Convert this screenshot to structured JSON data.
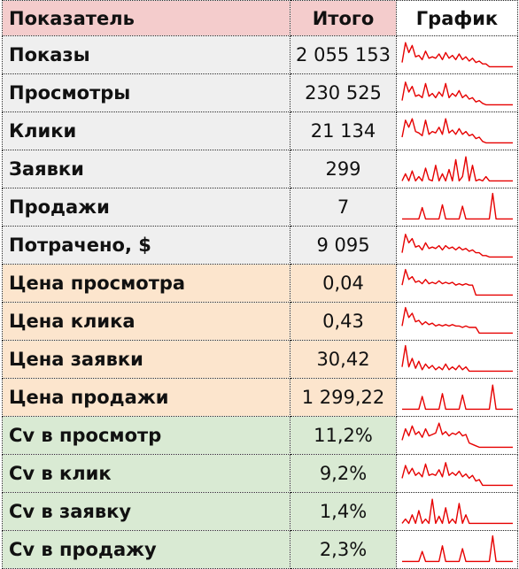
{
  "header": {
    "col_name": "Показатель",
    "col_total": "Итого",
    "col_chart": "График"
  },
  "line_color": "#e60000",
  "groups": {
    "base": "#efefef",
    "cost": "#fce5cd",
    "cv": "#d9ead3",
    "header": "#f4cccc"
  },
  "rows": [
    {
      "name": "Показы",
      "total": "2 055 153",
      "group": "base",
      "spark": [
        0.2,
        0.9,
        0.55,
        0.8,
        0.4,
        0.45,
        0.3,
        0.6,
        0.35,
        0.4,
        0.35,
        0.5,
        0.3,
        0.55,
        0.35,
        0.45,
        0.3,
        0.5,
        0.3,
        0.4,
        0.25,
        0.35,
        0.2,
        0.25,
        0.15,
        0.15,
        0.05,
        0.05,
        0.05,
        0.05,
        0.05,
        0.05,
        0.05,
        0.05
      ]
    },
    {
      "name": "Просмотры",
      "total": "230 525",
      "group": "base",
      "spark": [
        0.2,
        0.85,
        0.5,
        0.7,
        0.35,
        0.4,
        0.3,
        0.8,
        0.35,
        0.45,
        0.3,
        0.5,
        0.35,
        0.8,
        0.3,
        0.45,
        0.35,
        0.55,
        0.3,
        0.4,
        0.25,
        0.3,
        0.15,
        0.2,
        0.1,
        0.05,
        0.05,
        0.05,
        0.05,
        0.05,
        0.05,
        0.05,
        0.05,
        0.05
      ]
    },
    {
      "name": "Клики",
      "total": "21 134",
      "group": "base",
      "spark": [
        0.25,
        0.85,
        0.6,
        0.9,
        0.45,
        0.4,
        0.3,
        0.85,
        0.35,
        0.45,
        0.4,
        0.6,
        0.35,
        0.9,
        0.4,
        0.5,
        0.35,
        0.55,
        0.35,
        0.45,
        0.3,
        0.35,
        0.2,
        0.25,
        0.1,
        0.05,
        0.05,
        0.05,
        0.05,
        0.05,
        0.05,
        0.05,
        0.05,
        0.05
      ]
    },
    {
      "name": "Заявки",
      "total": "299",
      "group": "base",
      "spark": [
        0.05,
        0.3,
        0.05,
        0.4,
        0.05,
        0.2,
        0.05,
        0.5,
        0.1,
        0.05,
        0.6,
        0.05,
        0.3,
        0.05,
        0.45,
        0.05,
        0.8,
        0.05,
        0.2,
        0.9,
        0.05,
        0.6,
        0.05,
        0.1,
        0.05,
        0.2,
        0.05,
        0.05,
        0.05,
        0.05,
        0.05,
        0.05,
        0.05,
        0.05
      ]
    },
    {
      "name": "Продажи",
      "total": "7",
      "group": "base",
      "spark": [
        0.05,
        0.05,
        0.05,
        0.05,
        0.05,
        0.05,
        0.45,
        0.05,
        0.05,
        0.05,
        0.05,
        0.05,
        0.55,
        0.05,
        0.05,
        0.05,
        0.05,
        0.05,
        0.5,
        0.05,
        0.05,
        0.05,
        0.05,
        0.05,
        0.05,
        0.05,
        0.05,
        0.95,
        0.05,
        0.05,
        0.05,
        0.05,
        0.05,
        0.05
      ]
    },
    {
      "name": "Потрачено, $",
      "total": "9 095",
      "group": "base",
      "spark": [
        0.2,
        0.85,
        0.55,
        0.7,
        0.4,
        0.45,
        0.3,
        0.55,
        0.35,
        0.4,
        0.35,
        0.45,
        0.3,
        0.45,
        0.35,
        0.4,
        0.3,
        0.4,
        0.3,
        0.35,
        0.25,
        0.3,
        0.2,
        0.2,
        0.1,
        0.1,
        0.05,
        0.05,
        0.05,
        0.05,
        0.05,
        0.05,
        0.05,
        0.05
      ]
    },
    {
      "name": "Цена просмотра",
      "total": "0,04",
      "group": "cost",
      "spark": [
        0.4,
        0.95,
        0.6,
        0.7,
        0.5,
        0.55,
        0.45,
        0.6,
        0.45,
        0.5,
        0.45,
        0.55,
        0.45,
        0.5,
        0.45,
        0.5,
        0.4,
        0.45,
        0.4,
        0.45,
        0.4,
        0.4,
        0.05,
        0.05,
        0.05,
        0.05,
        0.05,
        0.05,
        0.05,
        0.05,
        0.05,
        0.05,
        0.05,
        0.05
      ]
    },
    {
      "name": "Цена клика",
      "total": "0,43",
      "group": "cost",
      "spark": [
        0.3,
        0.95,
        0.6,
        0.75,
        0.45,
        0.5,
        0.35,
        0.45,
        0.35,
        0.4,
        0.3,
        0.35,
        0.3,
        0.35,
        0.3,
        0.35,
        0.3,
        0.3,
        0.25,
        0.3,
        0.25,
        0.25,
        0.25,
        0.05,
        0.05,
        0.05,
        0.05,
        0.05,
        0.05,
        0.05,
        0.05,
        0.05,
        0.05,
        0.05
      ]
    },
    {
      "name": "Цена заявки",
      "total": "30,42",
      "group": "cost",
      "spark": [
        0.2,
        0.95,
        0.2,
        0.5,
        0.15,
        0.4,
        0.1,
        0.3,
        0.15,
        0.25,
        0.1,
        0.2,
        0.1,
        0.3,
        0.1,
        0.2,
        0.1,
        0.25,
        0.1,
        0.2,
        0.05,
        0.05,
        0.05,
        0.05,
        0.05,
        0.05,
        0.05,
        0.05,
        0.05,
        0.05,
        0.05,
        0.05,
        0.05,
        0.05
      ]
    },
    {
      "name": "Цена продажи",
      "total": "1 299,22",
      "group": "cost",
      "spark": [
        0.05,
        0.05,
        0.05,
        0.05,
        0.05,
        0.05,
        0.5,
        0.05,
        0.05,
        0.05,
        0.05,
        0.05,
        0.6,
        0.05,
        0.05,
        0.05,
        0.05,
        0.05,
        0.55,
        0.05,
        0.05,
        0.05,
        0.05,
        0.05,
        0.05,
        0.05,
        0.05,
        0.9,
        0.05,
        0.05,
        0.05,
        0.05,
        0.05,
        0.05
      ]
    },
    {
      "name": "Cv в просмотр",
      "total": "11,2%",
      "group": "cv",
      "spark": [
        0.3,
        0.7,
        0.45,
        0.8,
        0.5,
        0.6,
        0.4,
        0.7,
        0.45,
        0.5,
        0.55,
        0.9,
        0.5,
        0.6,
        0.45,
        0.55,
        0.5,
        0.6,
        0.45,
        0.5,
        0.2,
        0.15,
        0.1,
        0.05,
        0.05,
        0.05,
        0.05,
        0.05,
        0.05,
        0.05,
        0.05,
        0.05,
        0.05,
        0.05
      ]
    },
    {
      "name": "Cv в клик",
      "total": "9,2%",
      "group": "cv",
      "spark": [
        0.3,
        0.75,
        0.45,
        0.65,
        0.4,
        0.5,
        0.35,
        0.8,
        0.4,
        0.45,
        0.4,
        0.6,
        0.35,
        0.85,
        0.4,
        0.5,
        0.4,
        0.55,
        0.35,
        0.45,
        0.3,
        0.4,
        0.2,
        0.25,
        0.05,
        0.05,
        0.05,
        0.05,
        0.05,
        0.05,
        0.05,
        0.05,
        0.05,
        0.05
      ]
    },
    {
      "name": "Cv в заявку",
      "total": "1,4%",
      "group": "cv",
      "spark": [
        0.05,
        0.2,
        0.05,
        0.35,
        0.05,
        0.5,
        0.05,
        0.2,
        0.05,
        0.9,
        0.05,
        0.3,
        0.05,
        0.6,
        0.05,
        0.2,
        0.05,
        0.75,
        0.05,
        0.35,
        0.05,
        0.05,
        0.05,
        0.05,
        0.05,
        0.05,
        0.05,
        0.05,
        0.05,
        0.05,
        0.05,
        0.05,
        0.05,
        0.05
      ]
    },
    {
      "name": "Cv в продажу",
      "total": "2,3%",
      "group": "cv",
      "spark": [
        0.05,
        0.05,
        0.05,
        0.05,
        0.05,
        0.05,
        0.4,
        0.05,
        0.05,
        0.05,
        0.05,
        0.05,
        0.6,
        0.05,
        0.05,
        0.05,
        0.05,
        0.05,
        0.5,
        0.05,
        0.05,
        0.05,
        0.05,
        0.05,
        0.05,
        0.05,
        0.05,
        0.95,
        0.05,
        0.05,
        0.05,
        0.05,
        0.05,
        0.05
      ]
    }
  ]
}
